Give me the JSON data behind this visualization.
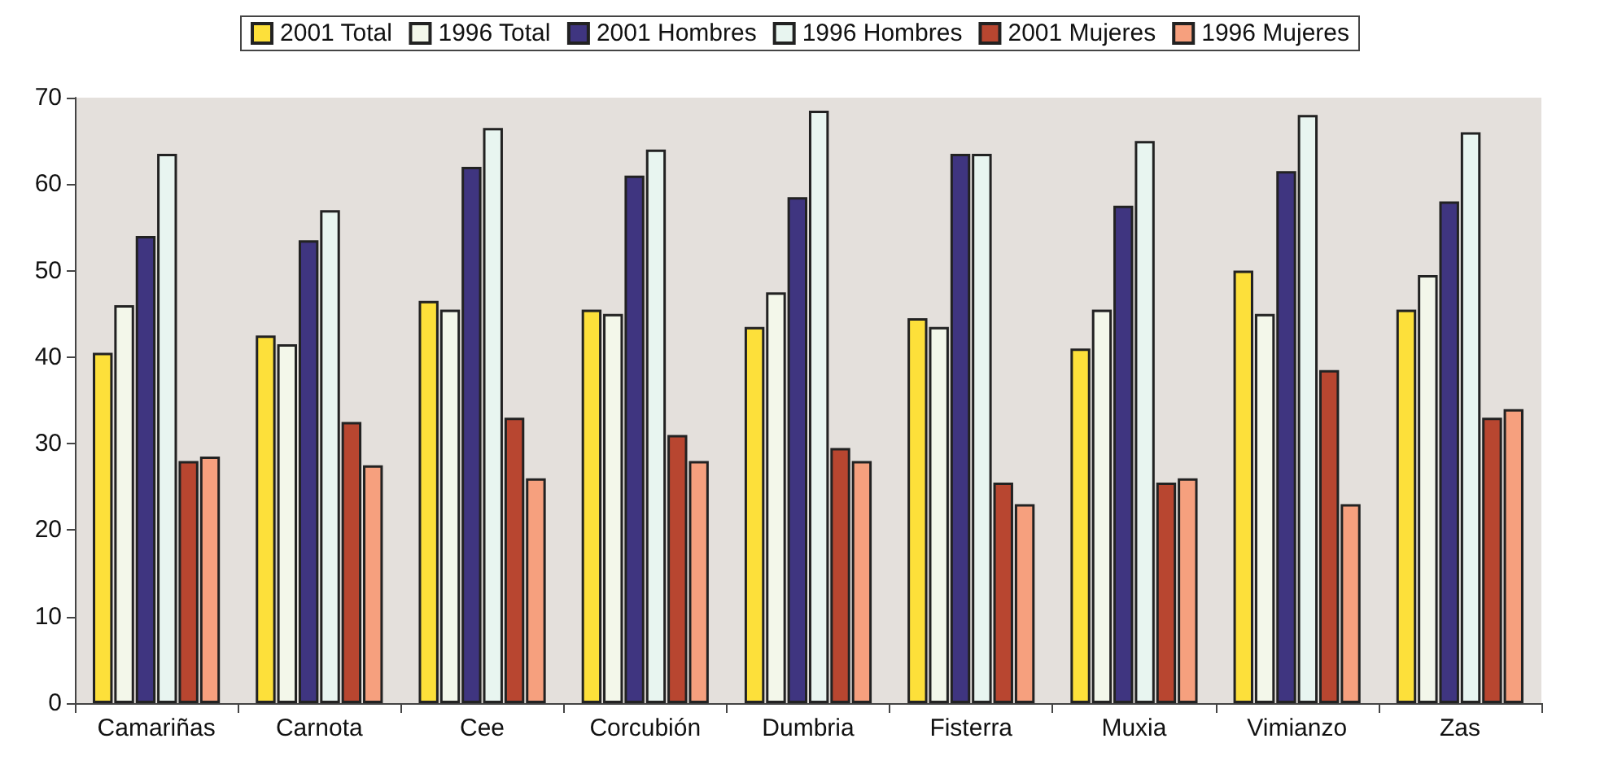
{
  "chart_data": {
    "type": "bar",
    "categories": [
      "Camariñas",
      "Carnota",
      "Cee",
      "Corcubión",
      "Dumbria",
      "Fisterra",
      "Muxia",
      "Vimianzo",
      "Zas"
    ],
    "series": [
      {
        "name": "2001 Total",
        "color": "#fde03a",
        "values": [
          40.5,
          42.5,
          46.5,
          45.5,
          43.5,
          44.5,
          41,
          50,
          45.5
        ]
      },
      {
        "name": "1996 Total",
        "color": "#f3f7ea",
        "values": [
          46,
          41.5,
          45.5,
          45,
          47.5,
          43.5,
          45.5,
          45,
          49.5
        ]
      },
      {
        "name": "2001 Hombres",
        "color": "#3f3580",
        "values": [
          54,
          53.5,
          62,
          61,
          58.5,
          63.5,
          57.5,
          61.5,
          58
        ]
      },
      {
        "name": "1996 Hombres",
        "color": "#e8f5f0",
        "values": [
          63.5,
          57,
          66.5,
          64,
          68.5,
          63.5,
          65,
          68,
          66
        ]
      },
      {
        "name": "2001 Mujeres",
        "color": "#b84630",
        "values": [
          28,
          32.5,
          33,
          31,
          29.5,
          25.5,
          25.5,
          38.5,
          33
        ]
      },
      {
        "name": "1996 Mujeres",
        "color": "#f6a07e",
        "values": [
          28.5,
          27.5,
          26,
          28,
          28,
          23,
          26,
          23,
          34
        ]
      }
    ],
    "ylim": [
      0,
      70
    ],
    "yticks": [
      0,
      10,
      20,
      30,
      40,
      50,
      60,
      70
    ],
    "grid": false,
    "legend": "top"
  }
}
